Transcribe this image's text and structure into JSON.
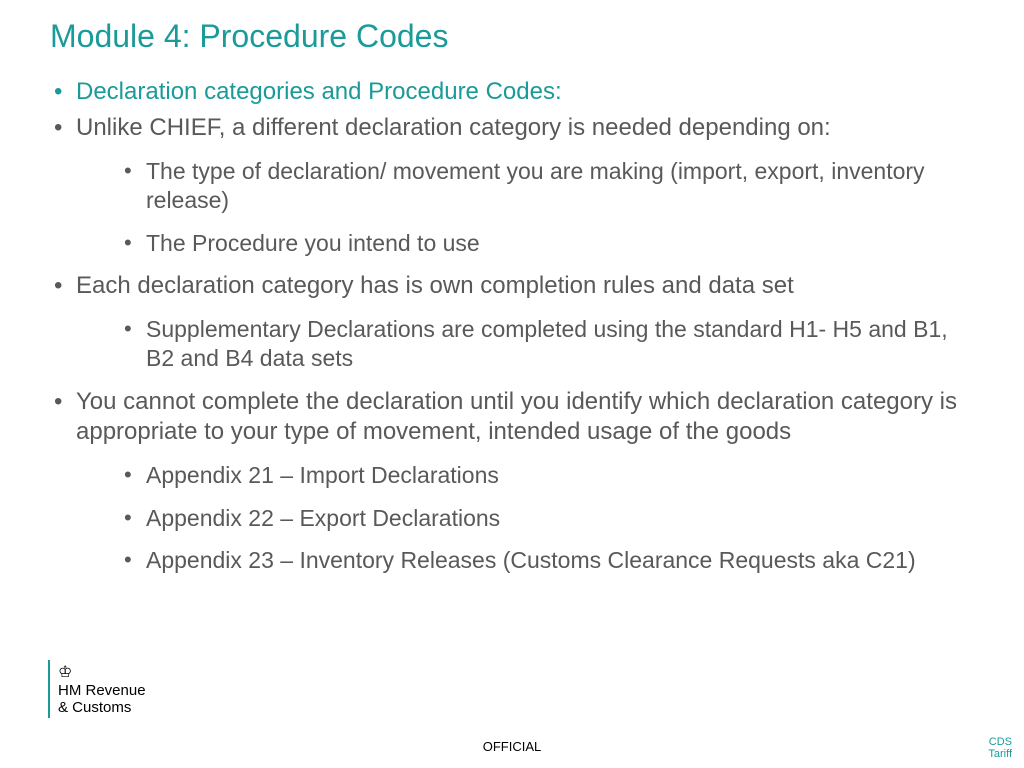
{
  "colors": {
    "teal": "#1a9b99",
    "gray": "#595959",
    "black": "#000000"
  },
  "title": "Module 4: Procedure Codes",
  "bullets": {
    "b1": "Declaration categories and Procedure Codes:",
    "b2": "Unlike CHIEF, a different declaration category is needed depending on:",
    "b2_1": "The type of declaration/ movement you are making (import, export, inventory release)",
    "b2_2": "The Procedure you intend to use",
    "b3": "Each declaration category has is own completion rules and data set",
    "b3_1": "Supplementary Declarations are completed using the standard H1- H5 and B1, B2 and B4 data sets",
    "b4": "You cannot complete the declaration until you identify which declaration category is appropriate to your type of movement, intended usage of the goods",
    "b4_1": "Appendix 21 – Import Declarations",
    "b4_2": "Appendix 22 – Export Declarations",
    "b4_3": "Appendix 23 – Inventory Releases (Customs Clearance Requests aka C21)"
  },
  "logo": {
    "crown": "♔",
    "line1": "HM Revenue",
    "line2": "& Customs"
  },
  "footer": {
    "center": "OFFICIAL",
    "right": "CDS Tariff"
  }
}
